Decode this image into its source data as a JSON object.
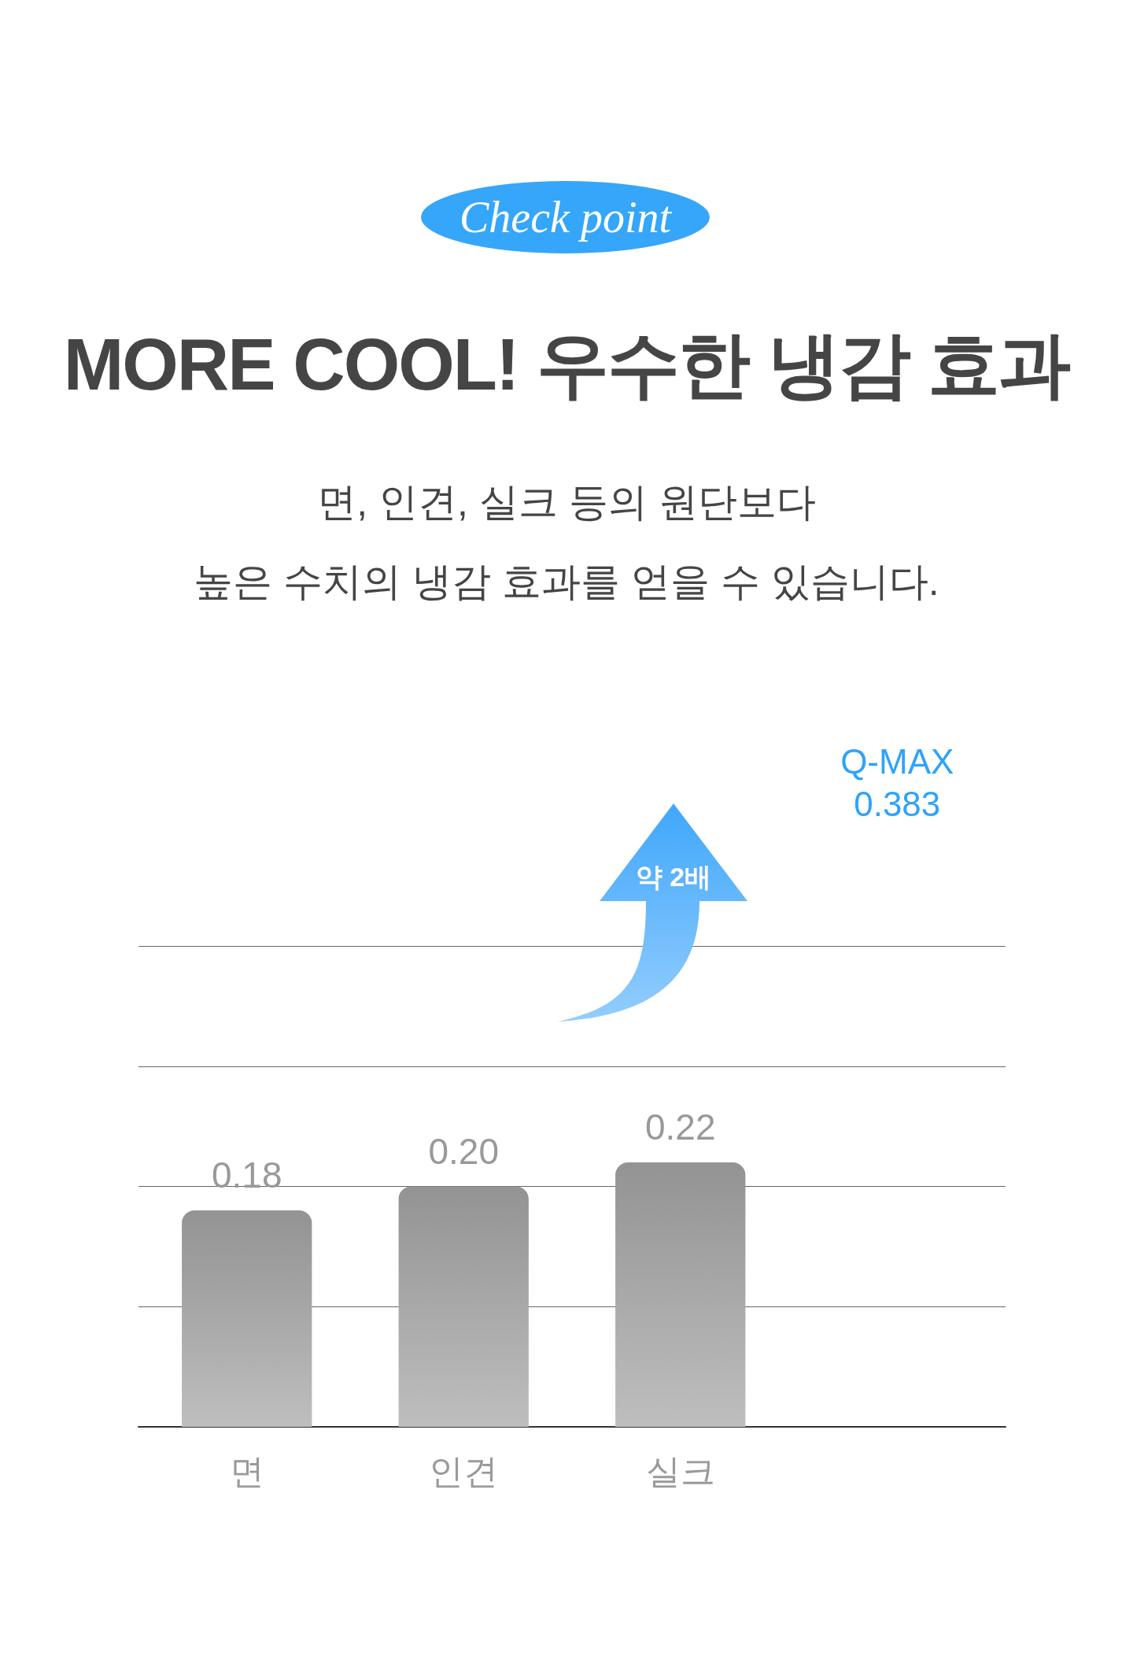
{
  "chart_data": {
    "type": "bar",
    "title": "MORE COOL! 우수한 냉감 효과",
    "subtitle": "면, 인견, 실크 등의 원단보다\n높은 수치의 냉감 효과를 얻을 수 있습니다.",
    "categories": [
      "면",
      "인견",
      "실크",
      null
    ],
    "values": [
      0.18,
      0.2,
      0.22,
      null
    ],
    "value_labels": [
      "0.18",
      "0.20",
      "0.22",
      null
    ],
    "color": "#939393",
    "ylim": [
      0,
      0.4
    ],
    "yticks": [
      {
        "value": 0,
        "label": null
      },
      {
        "value": 0.1,
        "label": null
      },
      {
        "value": 0.2,
        "label": null
      },
      {
        "value": 0.3,
        "label": null
      },
      {
        "value": 0.4,
        "label": null
      }
    ],
    "tick_labels": "x",
    "grid": "y",
    "annotations": [
      "Check point",
      "약 2배",
      "Q-MAX\n0.383"
    ]
  }
}
